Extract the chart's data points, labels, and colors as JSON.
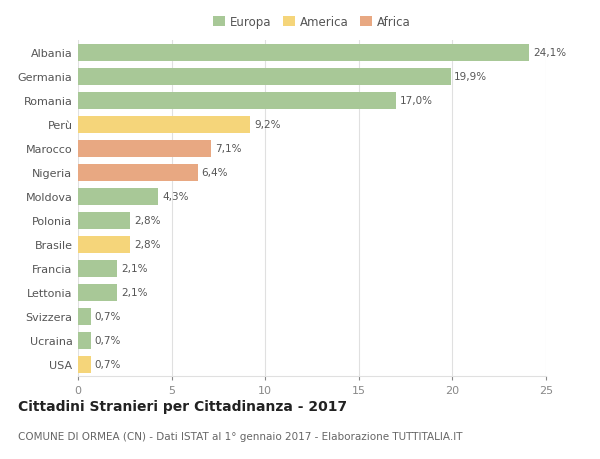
{
  "categories": [
    "Albania",
    "Germania",
    "Romania",
    "Perù",
    "Marocco",
    "Nigeria",
    "Moldova",
    "Polonia",
    "Brasile",
    "Francia",
    "Lettonia",
    "Svizzera",
    "Ucraina",
    "USA"
  ],
  "values": [
    24.1,
    19.9,
    17.0,
    9.2,
    7.1,
    6.4,
    4.3,
    2.8,
    2.8,
    2.1,
    2.1,
    0.7,
    0.7,
    0.7
  ],
  "labels": [
    "24,1%",
    "19,9%",
    "17,0%",
    "9,2%",
    "7,1%",
    "6,4%",
    "4,3%",
    "2,8%",
    "2,8%",
    "2,1%",
    "2,1%",
    "0,7%",
    "0,7%",
    "0,7%"
  ],
  "colors": [
    "#a8c897",
    "#a8c897",
    "#a8c897",
    "#f5d57a",
    "#e8a882",
    "#e8a882",
    "#a8c897",
    "#a8c897",
    "#f5d57a",
    "#a8c897",
    "#a8c897",
    "#a8c897",
    "#a8c897",
    "#f5d57a"
  ],
  "legend": {
    "Europa": "#a8c897",
    "America": "#f5d57a",
    "Africa": "#e8a882"
  },
  "title": "Cittadini Stranieri per Cittadinanza - 2017",
  "subtitle": "COMUNE DI ORMEA (CN) - Dati ISTAT al 1° gennaio 2017 - Elaborazione TUTTITALIA.IT",
  "xlim": [
    0,
    25
  ],
  "xticks": [
    0,
    5,
    10,
    15,
    20,
    25
  ],
  "background_color": "#ffffff",
  "grid_color": "#e0e0e0",
  "bar_height": 0.72,
  "title_fontsize": 10,
  "subtitle_fontsize": 7.5,
  "label_fontsize": 7.5,
  "tick_fontsize": 8,
  "legend_fontsize": 8.5
}
